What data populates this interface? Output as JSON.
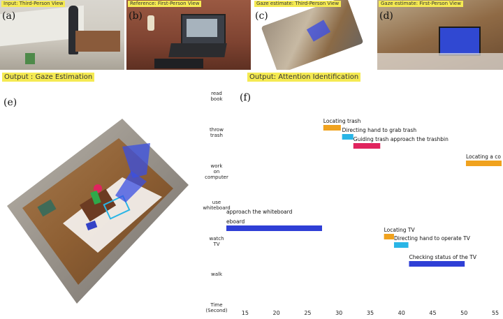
{
  "panels": {
    "a": {
      "tag": "Input: Third-Person View",
      "label": "(a)"
    },
    "b": {
      "tag": "Reference: First-Person View",
      "label": "(b)"
    },
    "c": {
      "tag": "Gaze estimate: Third-Person View",
      "label": "(c)"
    },
    "d": {
      "tag": "Gaze estimate: First-Person View",
      "label": "(d)"
    },
    "e": {
      "label": "(e)"
    },
    "f": {
      "label": "(f)"
    }
  },
  "outputs": {
    "gaze": "Output : Gaze Estimation",
    "attention": "Output: Attention Identification"
  },
  "y_axis": {
    "rows": [
      {
        "key": "read_book",
        "lines": [
          "read",
          "book"
        ]
      },
      {
        "key": "throw_trash",
        "lines": [
          "throw",
          "trash"
        ]
      },
      {
        "key": "work_on_computer",
        "lines": [
          "work",
          "on",
          "computer"
        ]
      },
      {
        "key": "use_whiteboard",
        "lines": [
          "use",
          "whiteboard"
        ]
      },
      {
        "key": "watch_tv",
        "lines": [
          "watch",
          "TV"
        ]
      },
      {
        "key": "walk",
        "lines": [
          "walk"
        ]
      },
      {
        "key": "time",
        "lines": [
          "Time",
          "(Second)"
        ]
      }
    ]
  },
  "chart_data": {
    "type": "bar",
    "orientation": "horizontal-timeline",
    "title": "",
    "xlabel": "Time (Second)",
    "ylabel": "",
    "xlim": [
      12,
      56
    ],
    "xticks": [
      15,
      20,
      25,
      30,
      35,
      40,
      45,
      50,
      55
    ],
    "categories": [
      "read book",
      "throw trash",
      "work on computer",
      "use whiteboard",
      "watch TV",
      "walk"
    ],
    "segments": [
      {
        "label": "Locating trash",
        "row": "throw trash",
        "start": 27.5,
        "end": 30.3,
        "color": "#f0a21e"
      },
      {
        "label": "Directing hand to grab trash",
        "row": "throw trash",
        "start": 30.5,
        "end": 32.3,
        "color": "#29b5e6"
      },
      {
        "label": "Guiding trash approach the trashbin",
        "row": "throw trash",
        "start": 32.3,
        "end": 36.6,
        "color": "#e0245e"
      },
      {
        "label": "Locating a co",
        "row": "work on computer",
        "start": 50.3,
        "end": 56,
        "color": "#f0a21e"
      },
      {
        "label": "approach the whiteboard",
        "row": "use whiteboard",
        "start": 12,
        "end": 12,
        "color": "#2f3fd6"
      },
      {
        "label": "eboard",
        "row": "use whiteboard",
        "start": 12,
        "end": 27.3,
        "color": "#2f3fd6"
      },
      {
        "label": "Locating TV",
        "row": "watch TV",
        "start": 37.2,
        "end": 38.8,
        "color": "#f0a21e"
      },
      {
        "label": "Directing hand to operate TV",
        "row": "watch TV",
        "start": 38.8,
        "end": 41.1,
        "color": "#29b5e6"
      },
      {
        "label": "Checking status of the TV",
        "row": "walk",
        "start": 41.2,
        "end": 50.1,
        "color": "#2f3fd6"
      }
    ]
  }
}
